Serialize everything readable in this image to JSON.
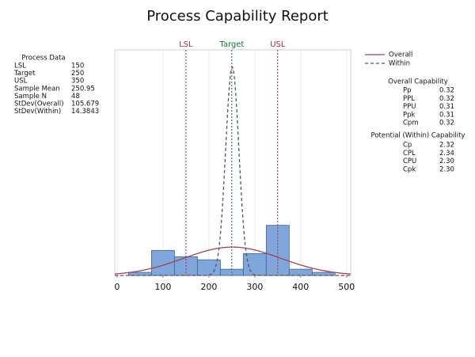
{
  "chart_data": {
    "type": "histogram",
    "title": "Process Capability Report",
    "bins": [
      25,
      75,
      125,
      175,
      225,
      275,
      325,
      375,
      425,
      475
    ],
    "counts": [
      1,
      8,
      6,
      5,
      2,
      7,
      16,
      2,
      1
    ],
    "color": "#7fa7db",
    "edge_color": "#3d5f94",
    "xlim": [
      -5,
      509
    ],
    "ylim": [
      0,
      72
    ],
    "xticks": [
      0,
      100,
      200,
      300,
      400,
      500
    ],
    "grid": true,
    "spec_lines": [
      {
        "name": "LSL",
        "color": "#a3303c"
      },
      {
        "name": "Target",
        "color": "#1f6b30"
      },
      {
        "name": "USL",
        "color": "#a3303c"
      }
    ],
    "curves": [
      {
        "name": "Overall",
        "color": "#a8404c",
        "dashed": false
      },
      {
        "name": "Within",
        "color": "#555555",
        "dashed": true
      }
    ],
    "process_data": {
      "title": "Process Data",
      "rows": [
        {
          "label": "LSL",
          "value": 150
        },
        {
          "label": "Target",
          "value": 250
        },
        {
          "label": "USL",
          "value": 350
        },
        {
          "label": "Sample Mean",
          "value": 250.95
        },
        {
          "label": "Sample N",
          "value": 48
        },
        {
          "label": "StDev(Overall)",
          "value": 105.679
        },
        {
          "label": "StDev(Within)",
          "value": 14.3843
        }
      ]
    },
    "overall_capability": {
      "title": "Overall Capability",
      "rows": [
        {
          "label": "Pp",
          "value": 0.32
        },
        {
          "label": "PPL",
          "value": 0.32
        },
        {
          "label": "PPU",
          "value": 0.31
        },
        {
          "label": "Ppk",
          "value": 0.31
        },
        {
          "label": "Cpm",
          "value": 0.32
        }
      ]
    },
    "within_capability": {
      "title": "Potential (Within) Capability",
      "rows": [
        {
          "label": "Cp",
          "value": 2.32
        },
        {
          "label": "CPL",
          "value": 2.34
        },
        {
          "label": "CPU",
          "value": {
            "value": 2.3,
            "label": "2.30"
          }
        },
        {
          "label": "Cpk",
          "value": {
            "value": 2.3,
            "label": "2.30"
          }
        }
      ]
    }
  }
}
